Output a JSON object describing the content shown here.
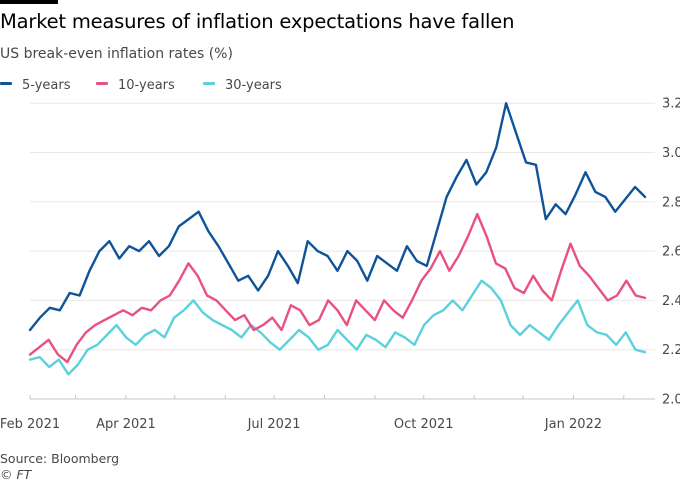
{
  "header": {
    "title": "Market measures of inflation expectations have fallen",
    "subtitle": "US break-even inflation rates (%)"
  },
  "legend": [
    {
      "label": "5-years",
      "color": "#0f5499"
    },
    {
      "label": "10-years",
      "color": "#e9517f"
    },
    {
      "label": "30-years",
      "color": "#5ad1dc"
    }
  ],
  "footer": {
    "source": "Source: Bloomberg",
    "copyright": "© FT"
  },
  "chart_data": {
    "type": "line",
    "title": "Market measures of inflation expectations have fallen",
    "subtitle": "US break-even inflation rates (%)",
    "xlabel": "",
    "ylabel": "",
    "x_start": "2021-02-01",
    "x_step_days": 7,
    "x_tick_labels": [
      "Feb 2021",
      "Apr 2021",
      "Jul 2021",
      "Oct 2021",
      "Jan 2022"
    ],
    "x_tick_months": [
      "2021-02",
      "2021-03",
      "2021-04",
      "2021-05",
      "2021-06",
      "2021-07",
      "2021-08",
      "2021-09",
      "2021-10",
      "2021-11",
      "2021-12",
      "2022-01",
      "2022-02"
    ],
    "y_ticks": [
      2.0,
      2.2,
      2.4,
      2.6,
      2.8,
      3.0,
      3.2
    ],
    "ylim": [
      2.0,
      3.25
    ],
    "y_axis_side": "right",
    "grid": true,
    "legend_position": "top-left",
    "series": [
      {
        "name": "5-years",
        "color": "#0f5499",
        "values": [
          2.28,
          2.33,
          2.37,
          2.36,
          2.43,
          2.42,
          2.52,
          2.6,
          2.64,
          2.57,
          2.62,
          2.6,
          2.64,
          2.58,
          2.62,
          2.7,
          2.73,
          2.76,
          2.68,
          2.62,
          2.55,
          2.48,
          2.5,
          2.44,
          2.5,
          2.6,
          2.54,
          2.47,
          2.64,
          2.6,
          2.58,
          2.52,
          2.6,
          2.56,
          2.48,
          2.58,
          2.55,
          2.52,
          2.62,
          2.56,
          2.54,
          2.68,
          2.82,
          2.9,
          2.97,
          2.87,
          2.92,
          3.02,
          3.2,
          3.08,
          2.96,
          2.95,
          2.73,
          2.79,
          2.75,
          2.83,
          2.92,
          2.84,
          2.82,
          2.76,
          2.81,
          2.86,
          2.82
        ]
      },
      {
        "name": "10-years",
        "color": "#e9517f",
        "values": [
          2.18,
          2.21,
          2.24,
          2.18,
          2.15,
          2.22,
          2.27,
          2.3,
          2.32,
          2.34,
          2.36,
          2.34,
          2.37,
          2.36,
          2.4,
          2.42,
          2.48,
          2.55,
          2.5,
          2.42,
          2.4,
          2.36,
          2.32,
          2.34,
          2.28,
          2.3,
          2.33,
          2.28,
          2.38,
          2.36,
          2.3,
          2.32,
          2.4,
          2.36,
          2.3,
          2.4,
          2.36,
          2.32,
          2.4,
          2.36,
          2.33,
          2.4,
          2.48,
          2.53,
          2.6,
          2.52,
          2.58,
          2.66,
          2.75,
          2.66,
          2.55,
          2.53,
          2.45,
          2.43,
          2.5,
          2.44,
          2.4,
          2.52,
          2.63,
          2.54,
          2.5,
          2.45,
          2.4,
          2.42,
          2.48,
          2.42,
          2.41
        ]
      },
      {
        "name": "30-years",
        "color": "#5ad1dc",
        "values": [
          2.16,
          2.17,
          2.13,
          2.16,
          2.1,
          2.14,
          2.2,
          2.22,
          2.26,
          2.3,
          2.25,
          2.22,
          2.26,
          2.28,
          2.25,
          2.33,
          2.36,
          2.4,
          2.35,
          2.32,
          2.3,
          2.28,
          2.25,
          2.3,
          2.27,
          2.23,
          2.2,
          2.24,
          2.28,
          2.25,
          2.2,
          2.22,
          2.28,
          2.24,
          2.2,
          2.26,
          2.24,
          2.21,
          2.27,
          2.25,
          2.22,
          2.3,
          2.34,
          2.36,
          2.4,
          2.36,
          2.42,
          2.48,
          2.45,
          2.4,
          2.3,
          2.26,
          2.3,
          2.27,
          2.24,
          2.3,
          2.35,
          2.4,
          2.3,
          2.27,
          2.26,
          2.22,
          2.27,
          2.2,
          2.19
        ]
      }
    ]
  }
}
